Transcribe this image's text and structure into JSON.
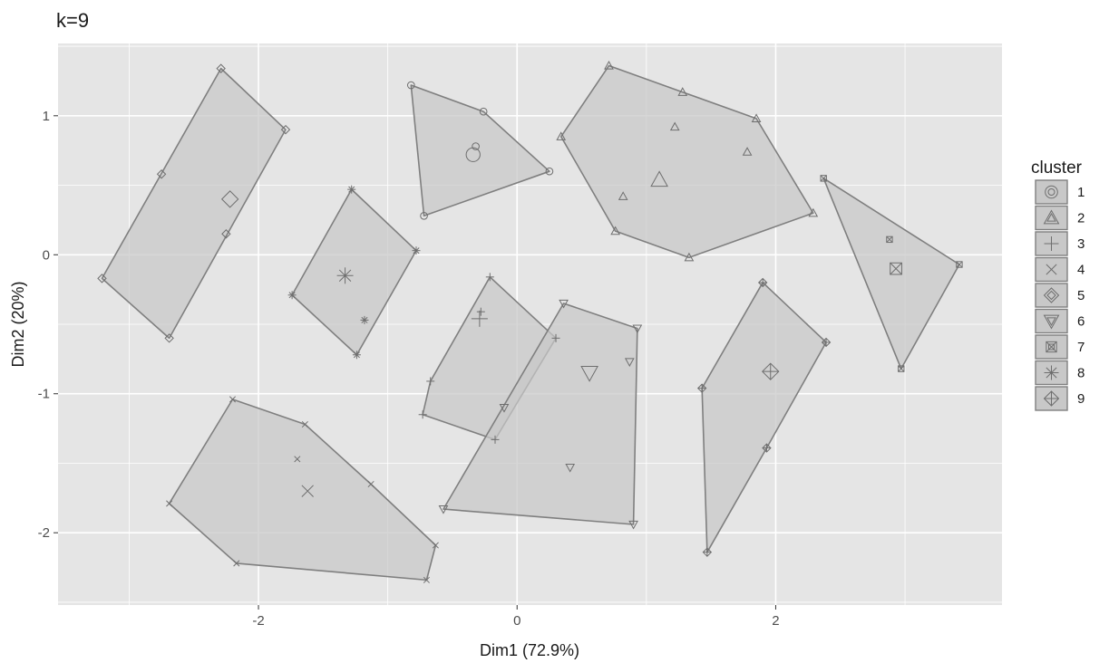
{
  "chart_data": {
    "type": "scatter",
    "title": "k=9",
    "xlabel": "Dim1 (72.9%)",
    "ylabel": "Dim2 (20%)",
    "xlim": [
      -3.55,
      3.75
    ],
    "ylim": [
      -2.52,
      1.52
    ],
    "x_ticks": [
      -2,
      0,
      2
    ],
    "y_ticks": [
      -2,
      -1,
      0,
      1
    ],
    "x_tick_labels": [
      "-2",
      "0",
      "2"
    ],
    "y_tick_labels": [
      "-2",
      "-1",
      "0",
      "1"
    ],
    "grid": true,
    "legend": {
      "title": "cluster",
      "position": "right"
    },
    "colors": {
      "panel": "#e5e5e5",
      "grid": "#ffffff",
      "hull_fill": "#c8c8c8",
      "hull_stroke": "#7f7f7f",
      "point": "#6e6e6e"
    },
    "series": [
      {
        "name": "1",
        "shape": "circle",
        "points": [
          [
            -0.82,
            1.22
          ],
          [
            -0.26,
            1.03
          ],
          [
            0.25,
            0.6
          ],
          [
            -0.72,
            0.28
          ],
          [
            -0.32,
            0.78
          ]
        ],
        "hull": [
          [
            -0.82,
            1.22
          ],
          [
            -0.26,
            1.03
          ],
          [
            0.25,
            0.6
          ],
          [
            -0.72,
            0.28
          ]
        ],
        "center": [
          -0.34,
          0.72
        ]
      },
      {
        "name": "2",
        "shape": "triangle",
        "points": [
          [
            0.71,
            1.36
          ],
          [
            1.28,
            1.17
          ],
          [
            1.85,
            0.98
          ],
          [
            2.29,
            0.3
          ],
          [
            1.33,
            -0.02
          ],
          [
            0.76,
            0.17
          ],
          [
            0.34,
            0.85
          ],
          [
            1.22,
            0.92
          ],
          [
            1.78,
            0.74
          ],
          [
            0.82,
            0.42
          ]
        ],
        "hull": [
          [
            0.71,
            1.36
          ],
          [
            1.28,
            1.17
          ],
          [
            1.85,
            0.98
          ],
          [
            2.29,
            0.3
          ],
          [
            1.33,
            -0.02
          ],
          [
            0.76,
            0.17
          ],
          [
            0.34,
            0.85
          ]
        ],
        "center": [
          1.1,
          0.54
        ]
      },
      {
        "name": "3",
        "shape": "plus",
        "points": [
          [
            -0.21,
            -0.16
          ],
          [
            0.3,
            -0.6
          ],
          [
            -0.17,
            -1.33
          ],
          [
            -0.73,
            -1.15
          ],
          [
            -0.67,
            -0.91
          ],
          [
            -0.28,
            -0.41
          ]
        ],
        "hull": [
          [
            -0.21,
            -0.16
          ],
          [
            0.3,
            -0.6
          ],
          [
            -0.17,
            -1.33
          ],
          [
            -0.73,
            -1.15
          ],
          [
            -0.67,
            -0.91
          ]
        ],
        "center": [
          -0.29,
          -0.46
        ]
      },
      {
        "name": "4",
        "shape": "cross",
        "points": [
          [
            -2.2,
            -1.04
          ],
          [
            -1.64,
            -1.22
          ],
          [
            -1.13,
            -1.65
          ],
          [
            -0.63,
            -2.09
          ],
          [
            -0.7,
            -2.34
          ],
          [
            -2.17,
            -2.22
          ],
          [
            -2.69,
            -1.79
          ],
          [
            -1.7,
            -1.47
          ]
        ],
        "hull": [
          [
            -2.2,
            -1.04
          ],
          [
            -1.64,
            -1.22
          ],
          [
            -1.13,
            -1.65
          ],
          [
            -0.63,
            -2.09
          ],
          [
            -0.7,
            -2.34
          ],
          [
            -2.17,
            -2.22
          ],
          [
            -2.69,
            -1.79
          ]
        ],
        "center": [
          -1.62,
          -1.7
        ]
      },
      {
        "name": "5",
        "shape": "diamond",
        "points": [
          [
            -2.29,
            1.34
          ],
          [
            -1.79,
            0.9
          ],
          [
            -2.69,
            -0.6
          ],
          [
            -3.21,
            -0.17
          ],
          [
            -2.75,
            0.58
          ],
          [
            -2.25,
            0.15
          ]
        ],
        "hull": [
          [
            -2.29,
            1.34
          ],
          [
            -1.79,
            0.9
          ],
          [
            -2.69,
            -0.6
          ],
          [
            -3.21,
            -0.17
          ]
        ],
        "center": [
          -2.22,
          0.4
        ]
      },
      {
        "name": "6",
        "shape": "triangle-down",
        "points": [
          [
            0.36,
            -0.35
          ],
          [
            0.93,
            -0.53
          ],
          [
            0.9,
            -1.94
          ],
          [
            -0.57,
            -1.83
          ],
          [
            0.87,
            -0.77
          ],
          [
            -0.1,
            -1.1
          ],
          [
            0.41,
            -1.53
          ]
        ],
        "hull": [
          [
            0.36,
            -0.35
          ],
          [
            0.93,
            -0.53
          ],
          [
            0.9,
            -1.94
          ],
          [
            -0.57,
            -1.83
          ]
        ],
        "center": [
          0.56,
          -0.85
        ]
      },
      {
        "name": "7",
        "shape": "square-cross",
        "points": [
          [
            2.37,
            0.55
          ],
          [
            3.42,
            -0.07
          ],
          [
            2.97,
            -0.82
          ],
          [
            2.88,
            0.11
          ]
        ],
        "hull": [
          [
            2.37,
            0.55
          ],
          [
            3.42,
            -0.07
          ],
          [
            2.97,
            -0.82
          ]
        ],
        "center": [
          2.93,
          -0.1
        ]
      },
      {
        "name": "8",
        "shape": "asterisk",
        "points": [
          [
            -1.28,
            0.47
          ],
          [
            -0.78,
            0.03
          ],
          [
            -1.24,
            -0.72
          ],
          [
            -1.74,
            -0.29
          ],
          [
            -1.18,
            -0.47
          ]
        ],
        "hull": [
          [
            -1.28,
            0.47
          ],
          [
            -0.78,
            0.03
          ],
          [
            -1.24,
            -0.72
          ],
          [
            -1.74,
            -0.29
          ]
        ],
        "center": [
          -1.33,
          -0.15
        ]
      },
      {
        "name": "9",
        "shape": "diamond-plus",
        "points": [
          [
            1.9,
            -0.2
          ],
          [
            2.39,
            -0.63
          ],
          [
            1.93,
            -1.39
          ],
          [
            1.47,
            -2.14
          ],
          [
            1.43,
            -0.96
          ]
        ],
        "hull": [
          [
            1.9,
            -0.2
          ],
          [
            2.39,
            -0.63
          ],
          [
            1.93,
            -1.39
          ],
          [
            1.47,
            -2.14
          ],
          [
            1.43,
            -0.96
          ]
        ],
        "center": [
          1.96,
          -0.84
        ]
      }
    ]
  }
}
